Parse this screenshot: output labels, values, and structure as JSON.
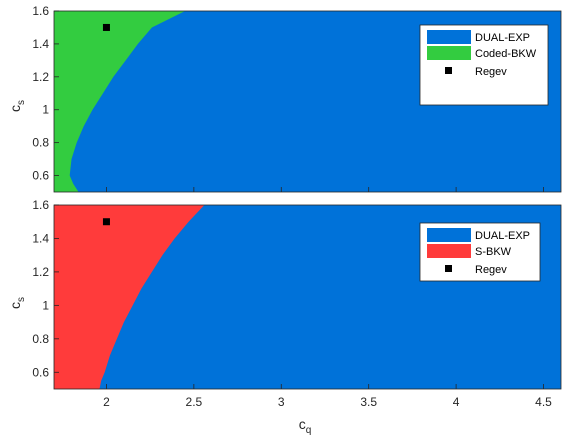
{
  "chart_data": [
    {
      "type": "area",
      "xlim": [
        1.7,
        4.6
      ],
      "ylim": [
        0.5,
        1.6
      ],
      "xticks": [
        "2",
        "2.5",
        "3",
        "3.5",
        "4",
        "4.5"
      ],
      "yticks": [
        "0.6",
        "0.8",
        "1",
        "1.2",
        "1.4",
        "1.6"
      ],
      "xlabel": "",
      "ylabel": "c_s",
      "ylabel_main": "c",
      "ylabel_sub": "s",
      "legend_position": "top-right",
      "background_region": {
        "name": "DUAL-EXP",
        "color": "#0072d9"
      },
      "boundary_region": {
        "name": "Coded-BKW",
        "color": "#33cc40",
        "boundary": {
          "cs": [
            0.5,
            0.55,
            0.6,
            0.7,
            0.8,
            0.9,
            1.0,
            1.1,
            1.2,
            1.3,
            1.4,
            1.5,
            1.6
          ],
          "cq": [
            1.84,
            1.81,
            1.79,
            1.8,
            1.83,
            1.87,
            1.92,
            1.98,
            2.04,
            2.11,
            2.18,
            2.26,
            2.45
          ]
        }
      },
      "points": {
        "name": "Regev",
        "color": "#000000",
        "x": [
          2.0
        ],
        "y": [
          1.5
        ]
      }
    },
    {
      "type": "area",
      "xlim": [
        1.7,
        4.6
      ],
      "ylim": [
        0.5,
        1.6
      ],
      "xticks": [
        "2",
        "2.5",
        "3",
        "3.5",
        "4",
        "4.5"
      ],
      "yticks": [
        "0.6",
        "0.8",
        "1",
        "1.2",
        "1.4",
        "1.6"
      ],
      "xlabel": "c_q",
      "xlabel_main": "c",
      "xlabel_sub": "q",
      "ylabel": "c_s",
      "ylabel_main": "c",
      "ylabel_sub": "s",
      "legend_position": "top-right",
      "background_region": {
        "name": "DUAL-EXP",
        "color": "#0072d9"
      },
      "boundary_region": {
        "name": "S-BKW",
        "color": "#ff3b3b",
        "boundary": {
          "cs": [
            0.5,
            0.55,
            0.6,
            0.7,
            0.8,
            0.9,
            1.0,
            1.1,
            1.2,
            1.3,
            1.4,
            1.5,
            1.6
          ],
          "cq": [
            1.96,
            1.97,
            1.99,
            2.02,
            2.06,
            2.1,
            2.15,
            2.2,
            2.26,
            2.32,
            2.39,
            2.47,
            2.56
          ]
        }
      },
      "points": {
        "name": "Regev",
        "color": "#000000",
        "x": [
          2.0
        ],
        "y": [
          1.5
        ]
      }
    }
  ]
}
